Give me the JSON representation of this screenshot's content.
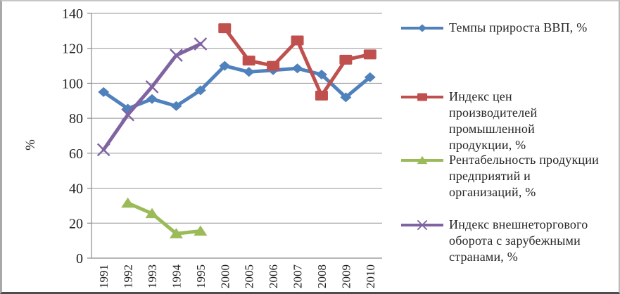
{
  "chart_data": {
    "type": "line",
    "title": "",
    "xlabel": "",
    "ylabel": "%",
    "ylim": [
      0,
      140
    ],
    "y_ticks": [
      0,
      20,
      40,
      60,
      80,
      100,
      120,
      140
    ],
    "grid": true,
    "grid_color": "#969696",
    "axis_color": "#8c8c8c",
    "text_color": "#1f1f1f",
    "legend_position": "right",
    "categories": [
      "1991",
      "1992",
      "1993",
      "1994",
      "1995",
      "2000",
      "2005",
      "2006",
      "2007",
      "2008",
      "2009",
      "2010"
    ],
    "series": [
      {
        "name": "Темпы прироста ВВП, %",
        "color": "#4F81BD",
        "marker": "diamond",
        "line_width": 5,
        "values": [
          95,
          85.5,
          91,
          87,
          96,
          110,
          106.5,
          107.5,
          108.5,
          105,
          92,
          103.5
        ]
      },
      {
        "name": "Индекс цен производителей промышленной продукции, %",
        "color": "#C0504D",
        "marker": "square",
        "line_width": 5,
        "values": [
          null,
          null,
          null,
          null,
          null,
          131.5,
          113,
          110,
          124.5,
          93,
          113.5,
          116.5
        ]
      },
      {
        "name": "Рентабельность продукции предприятий и организаций, %",
        "color": "#9BBB59",
        "marker": "triangle",
        "line_width": 5,
        "values": [
          null,
          31.5,
          25.5,
          14,
          15.5,
          null,
          null,
          null,
          null,
          null,
          null,
          null
        ]
      },
      {
        "name": "Индекс внешнеторгового оборота с зарубежными странами, %",
        "color": "#8064A2",
        "marker": "x",
        "line_width": 5,
        "values": [
          62,
          82,
          98,
          116,
          122.5,
          null,
          null,
          null,
          null,
          null,
          null,
          null
        ]
      }
    ]
  }
}
